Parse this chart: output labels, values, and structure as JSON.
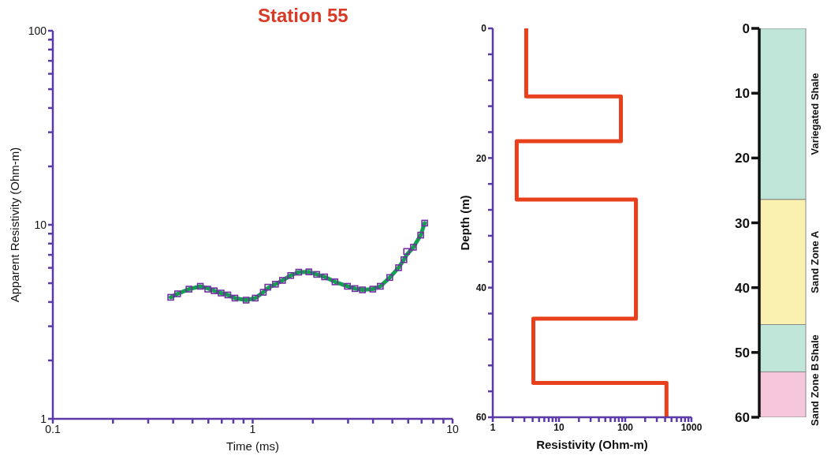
{
  "chart_data": [
    {
      "type": "line",
      "title": "Station 55",
      "xlabel": "Time (ms)",
      "ylabel": "Apparent Resistivity (Ohm-m)",
      "log": "xy",
      "xlim": [
        0.1,
        10
      ],
      "ylim": [
        1,
        100
      ],
      "xticks": [
        0.1,
        {
          "value": 0.2,
          "label": null
        },
        {
          "value": 0.3,
          "label": null
        },
        {
          "value": 0.4,
          "label": null
        },
        {
          "value": 0.5,
          "label": null
        },
        {
          "value": 0.6,
          "label": null
        },
        {
          "value": 0.7,
          "label": null
        },
        {
          "value": 0.8,
          "label": null
        },
        {
          "value": 0.9,
          "label": null
        },
        1,
        {
          "value": 2,
          "label": null
        },
        {
          "value": 3,
          "label": null
        },
        {
          "value": 4,
          "label": null
        },
        {
          "value": 5,
          "label": null
        },
        {
          "value": 6,
          "label": null
        },
        {
          "value": 7,
          "label": null
        },
        {
          "value": 8,
          "label": null
        },
        {
          "value": 9,
          "label": null
        },
        10
      ],
      "yticks": [
        1,
        {
          "value": 2,
          "label": null
        },
        {
          "value": 3,
          "label": null
        },
        {
          "value": 4,
          "label": null
        },
        {
          "value": 5,
          "label": null
        },
        {
          "value": 6,
          "label": null
        },
        {
          "value": 7,
          "label": null
        },
        {
          "value": 8,
          "label": null
        },
        {
          "value": 9,
          "label": null
        },
        10,
        {
          "value": 20,
          "label": null
        },
        {
          "value": 30,
          "label": null
        },
        {
          "value": 40,
          "label": null
        },
        {
          "value": 50,
          "label": null
        },
        {
          "value": 60,
          "label": null
        },
        {
          "value": 70,
          "label": null
        },
        {
          "value": 80,
          "label": null
        },
        {
          "value": 90,
          "label": null
        },
        100
      ],
      "grid": false,
      "legend": false,
      "marker": "square",
      "series": [
        {
          "type": "line",
          "marker": "none",
          "color": "#12a050",
          "x": [
            0.389,
            0.421,
            0.48,
            0.547,
            0.596,
            0.642,
            0.695,
            0.751,
            0.815,
            0.927,
            1.03,
            1.13,
            1.19,
            1.3,
            1.41,
            1.55,
            1.7,
            1.91,
            2.09,
            2.29,
            2.58,
            2.98,
            3.25,
            3.54,
            3.99,
            4.35,
            4.85,
            5.37,
            5.71,
            5.89,
            6.37,
            6.93,
            7.25
          ],
          "values": [
            4.23,
            4.41,
            4.66,
            4.82,
            4.7,
            4.57,
            4.45,
            4.35,
            4.19,
            4.09,
            4.19,
            4.49,
            4.72,
            4.94,
            5.17,
            5.48,
            5.7,
            5.72,
            5.55,
            5.39,
            5.08,
            4.82,
            4.69,
            4.62,
            4.66,
            4.82,
            5.35,
            6.01,
            6.61,
            7.0,
            7.66,
            8.85,
            10.2
          ]
        },
        {
          "type": "scatter",
          "color": "#7030a0",
          "x": [
            0.389,
            0.421,
            0.48,
            0.547,
            0.596,
            0.642,
            0.695,
            0.751,
            0.815,
            0.927,
            1.03,
            1.13,
            1.19,
            1.3,
            1.41,
            1.55,
            1.7,
            1.91,
            2.09,
            2.29,
            2.58,
            2.98,
            3.25,
            3.54,
            3.99,
            4.35,
            4.85,
            5.37,
            5.71,
            5.89,
            6.37,
            6.93,
            7.25
          ],
          "values": [
            4.23,
            4.41,
            4.66,
            4.82,
            4.66,
            4.57,
            4.45,
            4.35,
            4.19,
            4.09,
            4.19,
            4.49,
            4.77,
            4.94,
            5.17,
            5.48,
            5.7,
            5.72,
            5.55,
            5.39,
            5.08,
            4.82,
            4.69,
            4.62,
            4.66,
            4.82,
            5.35,
            6.01,
            6.61,
            7.29,
            7.66,
            8.85,
            10.2
          ]
        }
      ]
    },
    {
      "type": "line",
      "xlabel": "Resistivity (Ohm-m)",
      "ylabel": "Depth (m)",
      "log": "x",
      "xlim": [
        1,
        1000
      ],
      "ylim": [
        60,
        0
      ],
      "xticks": [
        1,
        {
          "value": 2,
          "label": null
        },
        {
          "value": 3,
          "label": null
        },
        {
          "value": 4,
          "label": null
        },
        {
          "value": 5,
          "label": null
        },
        {
          "value": 6,
          "label": null
        },
        {
          "value": 7,
          "label": null
        },
        {
          "value": 8,
          "label": null
        },
        {
          "value": 9,
          "label": null
        },
        10,
        {
          "value": 20,
          "label": null
        },
        {
          "value": 30,
          "label": null
        },
        {
          "value": 40,
          "label": null
        },
        {
          "value": 50,
          "label": null
        },
        {
          "value": 60,
          "label": null
        },
        {
          "value": 70,
          "label": null
        },
        {
          "value": 80,
          "label": null
        },
        {
          "value": 90,
          "label": null
        },
        100,
        {
          "value": 200,
          "label": null
        },
        {
          "value": 300,
          "label": null
        },
        {
          "value": 400,
          "label": null
        },
        {
          "value": 500,
          "label": null
        },
        {
          "value": 600,
          "label": null
        },
        {
          "value": 700,
          "label": null
        },
        {
          "value": 800,
          "label": null
        },
        {
          "value": 900,
          "label": null
        },
        1000
      ],
      "yticks": [
        0,
        {
          "value": 4,
          "label": null
        },
        {
          "value": 8,
          "label": null
        },
        {
          "value": 12,
          "label": null
        },
        {
          "value": 16,
          "label": null
        },
        20,
        {
          "value": 24,
          "label": null
        },
        {
          "value": 28,
          "label": null
        },
        {
          "value": 32,
          "label": null
        },
        {
          "value": 36,
          "label": null
        },
        40,
        {
          "value": 44,
          "label": null
        },
        {
          "value": 48,
          "label": null
        },
        {
          "value": 52,
          "label": null
        },
        {
          "value": 56,
          "label": null
        },
        60
      ],
      "grid": false,
      "legend": false,
      "marker": "none",
      "series": [
        {
          "color": "#e8401c",
          "x": [
            3.2,
            3.2,
            86,
            86,
            2.3,
            2.3,
            145,
            145,
            4.1,
            4.1,
            420,
            420
          ],
          "values": [
            0,
            10.5,
            10.5,
            17.4,
            17.4,
            26.4,
            26.4,
            44.8,
            44.8,
            54.7,
            54.7,
            60
          ]
        }
      ]
    },
    {
      "type": "bar",
      "stacked": true,
      "categories": [
        null
      ],
      "ylim": [
        60,
        0
      ],
      "yticks": [
        0,
        10,
        20,
        30,
        40,
        50,
        60
      ],
      "grid": false,
      "legend": false,
      "tick_labels": "y",
      "series": [
        {
          "name": "Variegated Shale",
          "color": "#bfe6d8",
          "values": [
            26.4
          ]
        },
        {
          "name": "Sand Zone A",
          "color": "#faf0b0",
          "values": [
            19.3
          ]
        },
        {
          "name": "Shale",
          "color": "#bfe6d8",
          "values": [
            7.3
          ]
        },
        {
          "name": "Sand Zone B",
          "color": "#f6c6dc",
          "values": [
            7.0
          ]
        }
      ]
    }
  ]
}
